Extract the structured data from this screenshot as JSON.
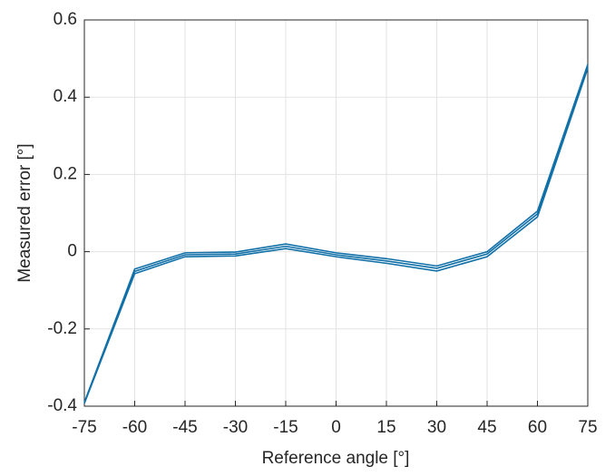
{
  "chart_data": {
    "type": "line",
    "xlabel": "Reference angle [°]",
    "ylabel": "Measured error [°]",
    "x": [
      -75,
      -60,
      -45,
      -30,
      -15,
      0,
      15,
      30,
      45,
      60,
      75
    ],
    "series": [
      {
        "color": "#1170a8",
        "values": [
          -0.39,
          -0.045,
          -0.003,
          -0.001,
          0.02,
          -0.003,
          -0.018,
          -0.037,
          0.0,
          0.105,
          0.485
        ]
      },
      {
        "color": "#1170a8",
        "values": [
          -0.391,
          -0.051,
          -0.008,
          -0.006,
          0.014,
          -0.008,
          -0.024,
          -0.043,
          -0.006,
          0.098,
          0.48
        ]
      },
      {
        "color": "#1170a8",
        "values": [
          -0.393,
          -0.057,
          -0.013,
          -0.011,
          0.008,
          -0.013,
          -0.03,
          -0.05,
          -0.013,
          0.09,
          0.475
        ]
      }
    ],
    "xlim": [
      -75,
      75
    ],
    "xticks": [
      -75,
      -60,
      -45,
      -30,
      -15,
      0,
      15,
      30,
      45,
      60,
      75
    ],
    "ylim": [
      -0.4,
      0.6
    ],
    "yticks": [
      -0.4,
      -0.2,
      0,
      0.2,
      0.4,
      0.6
    ],
    "grid": true
  }
}
